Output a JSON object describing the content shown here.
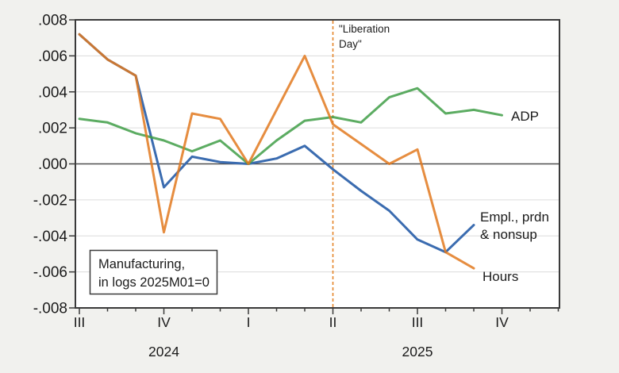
{
  "figure": {
    "background_color": "#f1f1ee",
    "plot_background_color": "#ffffff",
    "frame_color": "#3a3a3a",
    "gridline_color": "#dcdcdc",
    "zero_line_color": "#4f4f4f"
  },
  "annotation_box": {
    "line1": "Manufacturing,",
    "line2": "in logs 2025M01=0"
  },
  "liberation_day": {
    "label_line1": "\"Liberation",
    "label_line2": "Day\"",
    "month_index": 9,
    "month": "2025-04",
    "color": "#e5862a"
  },
  "chart_data": {
    "type": "line",
    "title": "",
    "xlabel": "",
    "ylabel": "",
    "x_unit": "month",
    "months": [
      "2024-07",
      "2024-08",
      "2024-09",
      "2024-10",
      "2024-11",
      "2024-12",
      "2025-01",
      "2025-02",
      "2025-03",
      "2025-04",
      "2025-05",
      "2025-06",
      "2025-07",
      "2025-08",
      "2025-09",
      "2025-10"
    ],
    "series": [
      {
        "name": "ADP",
        "label_lines": [
          "ADP"
        ],
        "color": "#3f9e46",
        "label_color": "#2e9b33",
        "values": [
          0.0025,
          0.0023,
          0.0017,
          0.0013,
          0.0007,
          0.0013,
          0.0,
          0.0013,
          0.0024,
          0.0026,
          0.0023,
          0.0037,
          0.0042,
          0.0028,
          0.003,
          0.0027
        ]
      },
      {
        "name": "Empl., prdn & nonsup",
        "label_lines": [
          "Empl., prdn",
          "& nonsup"
        ],
        "color": "#3b6cb0",
        "label_color": "#2b5fad",
        "values": [
          0.0072,
          0.0058,
          0.0049,
          -0.0013,
          0.0004,
          0.0001,
          0.0,
          0.0003,
          0.001,
          -0.0003,
          -0.0015,
          -0.0026,
          -0.0042,
          -0.0049,
          -0.0034,
          null
        ]
      },
      {
        "name": "Hours",
        "label_lines": [
          "Hours"
        ],
        "color": "#e2791f",
        "label_color": "#e2831e",
        "values": [
          0.0072,
          0.0058,
          0.0049,
          -0.0038,
          0.0028,
          0.0025,
          0.0,
          0.003,
          0.006,
          0.0022,
          0.0011,
          0.0,
          0.0008,
          -0.0049,
          -0.0058,
          null
        ]
      }
    ],
    "ylim": [
      -0.008,
      0.008
    ],
    "grid_values": [
      0.006,
      0.004,
      0.002,
      -0.002,
      -0.004,
      -0.006
    ],
    "zero_line": true,
    "grid_on": true,
    "legend_position": "line-end-labels",
    "y_ticks": [
      {
        "label": ".008",
        "value": 0.008
      },
      {
        "label": ".006",
        "value": 0.006
      },
      {
        "label": ".004",
        "value": 0.004
      },
      {
        "label": ".002",
        "value": 0.002
      },
      {
        "label": ".000",
        "value": 0.0
      },
      {
        "label": "-.002",
        "value": -0.002
      },
      {
        "label": "-.004",
        "value": -0.004
      },
      {
        "label": "-.006",
        "value": -0.006
      },
      {
        "label": "-.008",
        "value": -0.008
      }
    ],
    "x_quarter_ticks": [
      {
        "label": "III",
        "month_index": 0
      },
      {
        "label": "IV",
        "month_index": 3
      },
      {
        "label": "I",
        "month_index": 6
      },
      {
        "label": "II",
        "month_index": 9
      },
      {
        "label": "III",
        "month_index": 12
      },
      {
        "label": "IV",
        "month_index": 15
      }
    ],
    "x_year_labels": [
      {
        "label": "2024",
        "month_index": 3
      },
      {
        "label": "2025",
        "month_index": 12
      }
    ],
    "x_total_months": 18
  }
}
